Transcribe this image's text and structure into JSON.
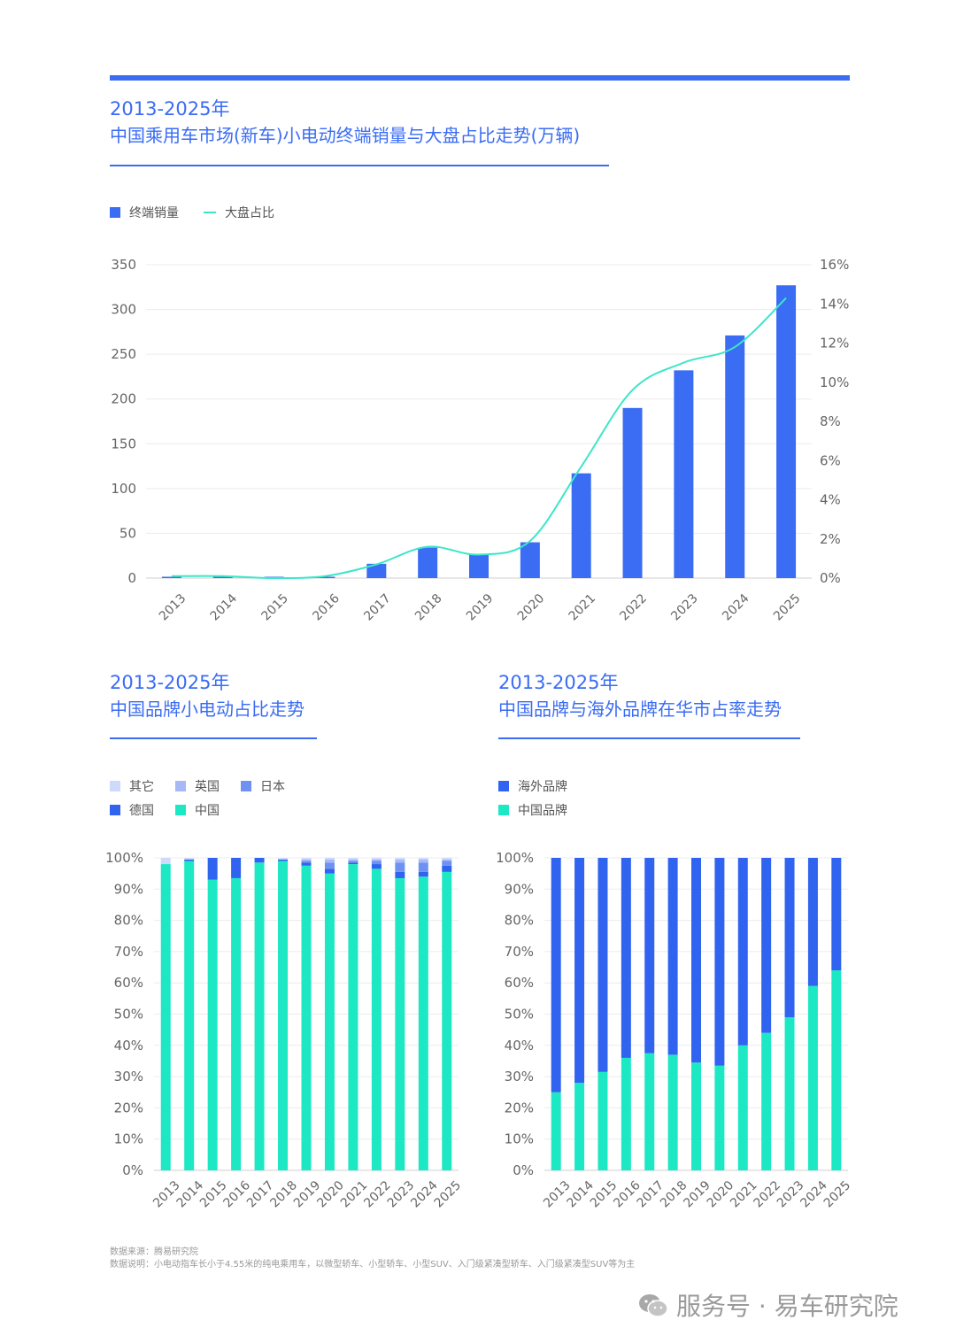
{
  "chart1": {
    "title_year": "2013-2025年",
    "title": "中国乘用车市场(新车)小电动终端销量与大盘占比走势(万辆)",
    "legend": {
      "bar": "终端销量",
      "line": "大盘占比"
    },
    "colors": {
      "bar": "#3a6cf4",
      "line": "#3ce6c8"
    }
  },
  "chart2": {
    "title_year": "2013-2025年",
    "title": "中国品牌小电动占比走势",
    "legend": [
      "其它",
      "英国",
      "日本",
      "德国",
      "中国"
    ]
  },
  "chart3": {
    "title_year": "2013-2025年",
    "title": "中国品牌与海外品牌在华市占率走势",
    "legend": [
      "海外品牌",
      "中国品牌"
    ]
  },
  "chart_data": [
    {
      "type": "bar",
      "title": "中国乘用车市场(新车)小电动终端销量与大盘占比走势(万辆)",
      "categories": [
        "2013",
        "2014",
        "2015",
        "2016",
        "2017",
        "2018",
        "2019",
        "2020",
        "2021",
        "2022",
        "2023",
        "2024",
        "2025"
      ],
      "series": [
        {
          "name": "终端销量",
          "type": "bar",
          "axis": "left",
          "values": [
            1.5,
            2,
            1.5,
            1.5,
            16,
            34,
            26,
            40,
            117,
            190,
            232,
            271,
            327
          ]
        },
        {
          "name": "大盘占比",
          "type": "line",
          "axis": "right",
          "unit": "%",
          "values": [
            0.1,
            0.1,
            0.0,
            0.1,
            0.7,
            1.6,
            1.2,
            1.9,
            5.7,
            9.6,
            11.0,
            11.8,
            14.3
          ]
        }
      ],
      "ylim": [
        0,
        350
      ],
      "yticks": [
        0,
        50,
        100,
        150,
        200,
        250,
        300,
        350
      ],
      "y2lim": [
        0,
        16
      ],
      "y2ticks": [
        "0%",
        "2%",
        "4%",
        "6%",
        "8%",
        "10%",
        "12%",
        "14%",
        "16%"
      ],
      "grid": true,
      "legend_position": "top-left"
    },
    {
      "type": "bar",
      "stacked": true,
      "title": "中国品牌小电动占比走势",
      "categories": [
        "2013",
        "2014",
        "2015",
        "2016",
        "2017",
        "2018",
        "2019",
        "2020",
        "2021",
        "2022",
        "2023",
        "2024",
        "2025"
      ],
      "series": [
        {
          "name": "中国",
          "color": "#1ce8c4",
          "values": [
            98.0,
            99.0,
            93.0,
            93.5,
            98.5,
            99.0,
            97.5,
            95.0,
            98.0,
            96.5,
            93.5,
            94.0,
            95.5
          ]
        },
        {
          "name": "德国",
          "color": "#2f63f0",
          "values": [
            0.0,
            0.5,
            7.0,
            6.5,
            1.5,
            0.5,
            1.0,
            1.5,
            0.5,
            1.5,
            2.0,
            1.5,
            2.0
          ]
        },
        {
          "name": "日本",
          "color": "#6f91f2",
          "values": [
            0.0,
            0.0,
            0.0,
            0.0,
            0.0,
            0.0,
            0.5,
            2.0,
            0.5,
            1.0,
            3.0,
            3.0,
            1.5
          ]
        },
        {
          "name": "英国",
          "color": "#a6b8f6",
          "values": [
            0.0,
            0.0,
            0.0,
            0.0,
            0.0,
            0.0,
            0.5,
            1.0,
            0.5,
            0.5,
            1.0,
            1.0,
            0.5
          ]
        },
        {
          "name": "其它",
          "color": "#cfd9fb",
          "values": [
            2.0,
            0.5,
            0.0,
            0.0,
            0.0,
            0.5,
            0.5,
            0.5,
            0.5,
            0.5,
            0.5,
            0.5,
            0.5
          ]
        }
      ],
      "ylim": [
        0,
        100
      ],
      "yticks": [
        "0%",
        "10%",
        "20%",
        "30%",
        "40%",
        "50%",
        "60%",
        "70%",
        "80%",
        "90%",
        "100%"
      ],
      "grid": true,
      "legend_position": "top-left"
    },
    {
      "type": "bar",
      "stacked": true,
      "title": "中国品牌与海外品牌在华市占率走势",
      "categories": [
        "2013",
        "2014",
        "2015",
        "2016",
        "2017",
        "2018",
        "2019",
        "2020",
        "2021",
        "2022",
        "2023",
        "2024",
        "2025"
      ],
      "series": [
        {
          "name": "中国品牌",
          "color": "#1ce8c4",
          "values": [
            25,
            28,
            31.5,
            36,
            37.5,
            37,
            34.5,
            33.5,
            40,
            44,
            49,
            59,
            64
          ]
        },
        {
          "name": "海外品牌",
          "color": "#2f63f0",
          "values": [
            75,
            72,
            68.5,
            64,
            62.5,
            63,
            65.5,
            66.5,
            60,
            56,
            51,
            41,
            36
          ]
        }
      ],
      "ylim": [
        0,
        100
      ],
      "yticks": [
        "0%",
        "10%",
        "20%",
        "30%",
        "40%",
        "50%",
        "60%",
        "70%",
        "80%",
        "90%",
        "100%"
      ],
      "grid": true,
      "legend_position": "top-left"
    }
  ],
  "footer": {
    "source": "数据来源：腾易研究院",
    "note": "数据说明：小电动指车长小于4.55米的纯电乘用车，以微型轿车、小型轿车、小型SUV、入门级紧凑型轿车、入门级紧凑型SUV等为主"
  },
  "brand": {
    "text": "服务号 · 易车研究院",
    "icon": "wechat-icon"
  }
}
